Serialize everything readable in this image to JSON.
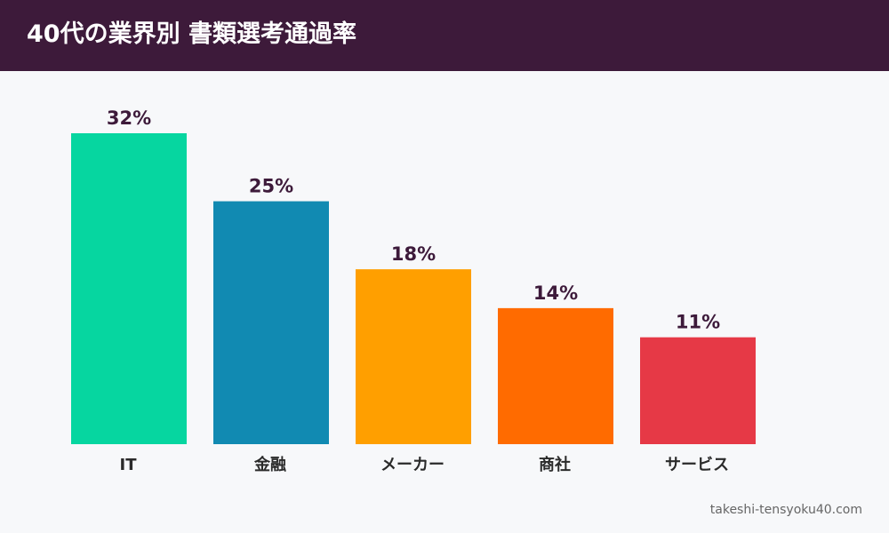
{
  "title": "40代の業界別 書類選考通過率",
  "source": "takeshi-tensyoku40.com",
  "colors": {
    "header_bg": "#3d1a3a",
    "background": "#f7f8fa",
    "value_label": "#3d1a3a"
  },
  "chart_data": {
    "type": "bar",
    "title": "40代の業界別 書類選考通過率",
    "categories": [
      "IT",
      "金融",
      "メーカー",
      "商社",
      "サービス"
    ],
    "values": [
      32,
      25,
      18,
      14,
      11
    ],
    "value_labels": [
      "32%",
      "25%",
      "18%",
      "14%",
      "11%"
    ],
    "unit": "%",
    "bar_colors": [
      "#06d6a0",
      "#118ab2",
      "#ff9f00",
      "#ff6b00",
      "#e63946"
    ],
    "ylim": [
      0,
      32
    ],
    "grid": false,
    "legend": "none",
    "xlabel": "",
    "ylabel": ""
  }
}
